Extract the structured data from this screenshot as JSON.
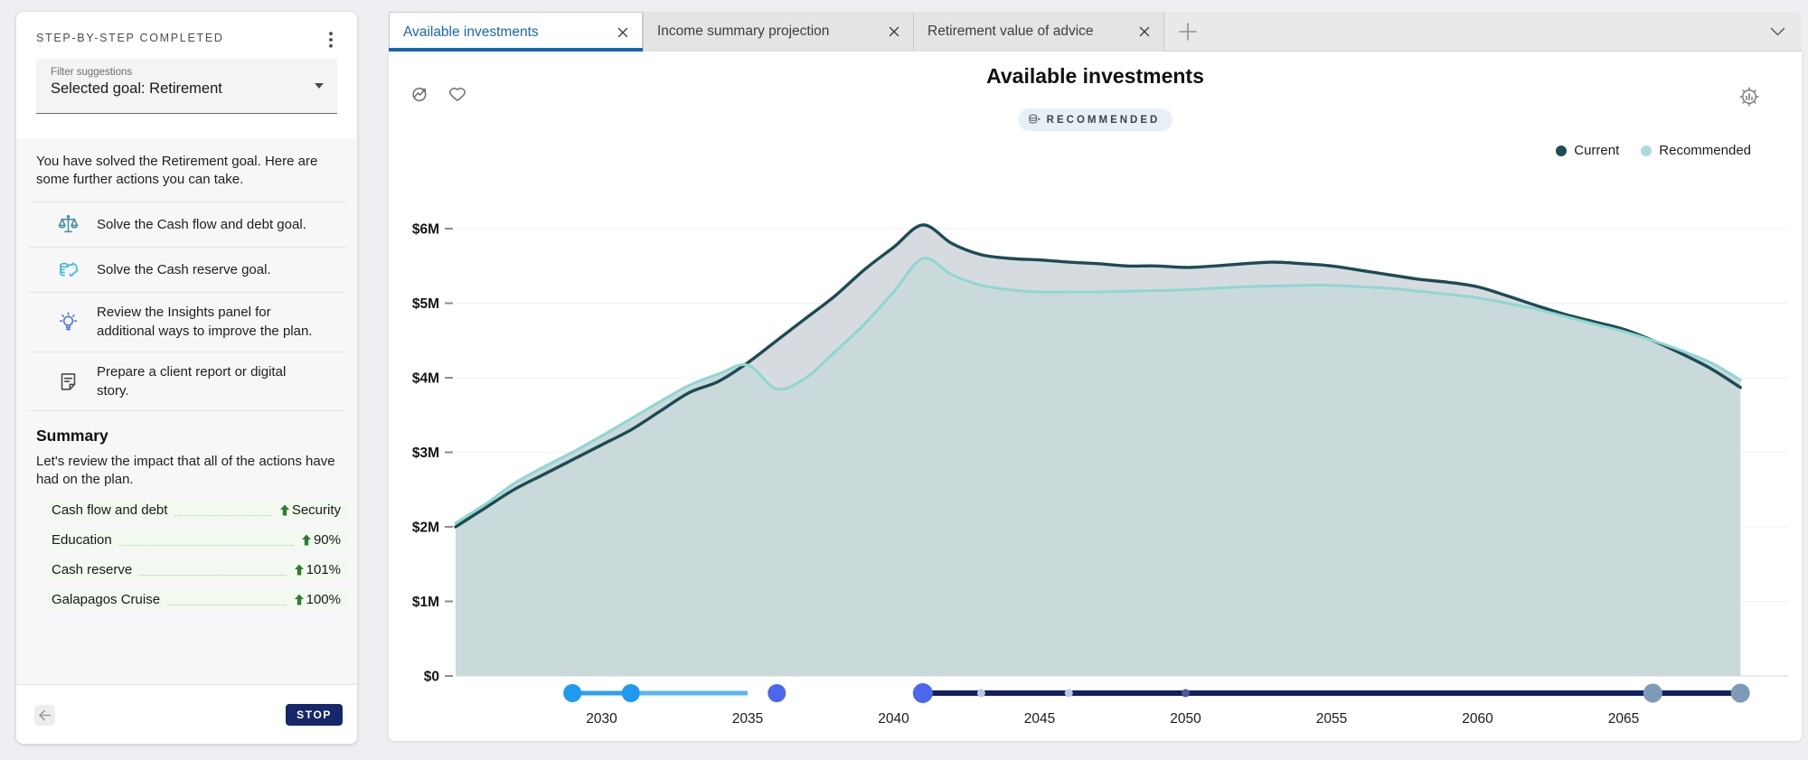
{
  "assistant": {
    "title": "STEP-BY-STEP COMPLETED",
    "menu_icon": "kebab-menu-icon",
    "filter": {
      "label": "Filter suggestions",
      "value": "Selected goal: Retirement"
    },
    "intro": "You have solved the Retirement goal. Here are some further actions you can take.",
    "suggestions": [
      {
        "icon": "scales-icon",
        "text": "Solve the Cash flow and debt goal."
      },
      {
        "icon": "piggy-bank-icon",
        "text": "Solve the Cash reserve goal."
      },
      {
        "icon": "lightbulb-icon",
        "text": "Review the Insights panel for additional ways to improve the plan."
      },
      {
        "icon": "report-icon",
        "text": "Prepare a client report or digital story."
      }
    ],
    "summary": {
      "heading": "Summary",
      "intro": "Let's review the impact that all of the actions have had on the plan.",
      "rows": [
        {
          "label": "Cash flow and debt",
          "value": "Security"
        },
        {
          "label": "Education",
          "value": "90%"
        },
        {
          "label": "Cash reserve",
          "value": "101%"
        },
        {
          "label": "Galapagos Cruise",
          "value": "100%"
        }
      ],
      "positive_color": "#2e7d32"
    },
    "footer": {
      "back_icon": "back-arrow-icon",
      "stop_label": "STOP",
      "stop_bg": "#16276b"
    }
  },
  "tab_bar": {
    "active_color": "#1667b8",
    "tabs": [
      {
        "label": "Available investments",
        "active": true
      },
      {
        "label": "Income summary projection",
        "active": false
      },
      {
        "label": "Retirement value of advice",
        "active": false
      }
    ],
    "add_tab_icon": "plus-icon",
    "overflow_icon": "chevron-down-icon"
  },
  "panel_tools": {
    "icons": [
      "trend-analysis-icon",
      "favorite-heart-icon"
    ],
    "settings_icon": "chart-settings-gear-icon"
  },
  "chart_data": {
    "type": "area",
    "title": "Available investments",
    "badge": "RECOMMENDED",
    "grid": true,
    "legend_position": "top-right",
    "ylim": [
      0,
      6.5
    ],
    "legend": [
      {
        "label": "Current",
        "color": "#1d4d57"
      },
      {
        "label": "Recommended",
        "color": "#a9dbd9"
      }
    ],
    "x": [
      2025,
      2026,
      2027,
      2028,
      2029,
      2030,
      2031,
      2032,
      2033,
      2034,
      2035,
      2036,
      2037,
      2038,
      2039,
      2040,
      2041,
      2042,
      2043,
      2044,
      2045,
      2046,
      2047,
      2048,
      2049,
      2050,
      2051,
      2052,
      2053,
      2054,
      2055,
      2056,
      2057,
      2058,
      2059,
      2060,
      2061,
      2062,
      2063,
      2064,
      2065,
      2066,
      2067,
      2068,
      2069
    ],
    "series": [
      {
        "name": "Current",
        "color": "#1d4b54",
        "fill": "#d6dbdf",
        "unit": "$M",
        "values": [
          2.0,
          2.25,
          2.5,
          2.7,
          2.9,
          3.1,
          3.3,
          3.55,
          3.8,
          3.95,
          4.2,
          4.5,
          4.8,
          5.1,
          5.45,
          5.75,
          6.05,
          5.8,
          5.65,
          5.6,
          5.58,
          5.55,
          5.53,
          5.5,
          5.5,
          5.48,
          5.5,
          5.53,
          5.55,
          5.53,
          5.5,
          5.44,
          5.38,
          5.32,
          5.28,
          5.22,
          5.1,
          4.97,
          4.85,
          4.75,
          4.65,
          4.5,
          4.32,
          4.12,
          3.87
        ]
      },
      {
        "name": "Recommended",
        "color": "#8ed7d2",
        "fill": "#cadada",
        "unit": "$M",
        "values": [
          2.05,
          2.3,
          2.58,
          2.8,
          3.0,
          3.22,
          3.45,
          3.68,
          3.9,
          4.05,
          4.17,
          3.85,
          4.0,
          4.35,
          4.72,
          5.15,
          5.6,
          5.38,
          5.24,
          5.18,
          5.15,
          5.15,
          5.15,
          5.16,
          5.17,
          5.18,
          5.2,
          5.22,
          5.23,
          5.24,
          5.24,
          5.22,
          5.2,
          5.16,
          5.12,
          5.07,
          5.0,
          4.92,
          4.82,
          4.72,
          4.62,
          4.5,
          4.36,
          4.2,
          3.97
        ]
      }
    ],
    "yticks": [
      {
        "v": 0,
        "label": "$0"
      },
      {
        "v": 1,
        "label": "$1M"
      },
      {
        "v": 2,
        "label": "$2M"
      },
      {
        "v": 3,
        "label": "$3M"
      },
      {
        "v": 4,
        "label": "$4M"
      },
      {
        "v": 5,
        "label": "$5M"
      },
      {
        "v": 6,
        "label": "$6M"
      }
    ],
    "xticks": [
      2030,
      2035,
      2040,
      2045,
      2050,
      2055,
      2060,
      2065
    ],
    "timeline_slider": {
      "segments": [
        {
          "from": 2029,
          "to": 2035,
          "color": "#2e9ff2",
          "width": 5
        },
        {
          "from": 2031,
          "to": 2035,
          "color": "#5bb6f4",
          "width": 5
        },
        {
          "from": 2041,
          "to": 2069,
          "color": "#13205f",
          "width": 6
        }
      ],
      "markers": [
        {
          "year": 2029,
          "r": 10,
          "color": "#1e9af0",
          "kind": "handle"
        },
        {
          "year": 2031,
          "r": 10,
          "color": "#1e9af0",
          "kind": "handle"
        },
        {
          "year": 2036,
          "r": 10,
          "color": "#4a67ee",
          "kind": "handle"
        },
        {
          "year": 2041,
          "r": 11,
          "color": "#4a67ee",
          "kind": "handle"
        },
        {
          "year": 2043,
          "r": 4.5,
          "color": "#b9c6e0",
          "kind": "tick"
        },
        {
          "year": 2046,
          "r": 4.5,
          "color": "#b9c6e0",
          "kind": "tick"
        },
        {
          "year": 2050,
          "r": 4.5,
          "color": "#47589c",
          "kind": "tick"
        },
        {
          "year": 2066,
          "r": 10.5,
          "color": "#7d9ab9",
          "kind": "handle"
        },
        {
          "year": 2069,
          "r": 10.5,
          "color": "#7d9ab9",
          "kind": "handle"
        }
      ]
    }
  }
}
